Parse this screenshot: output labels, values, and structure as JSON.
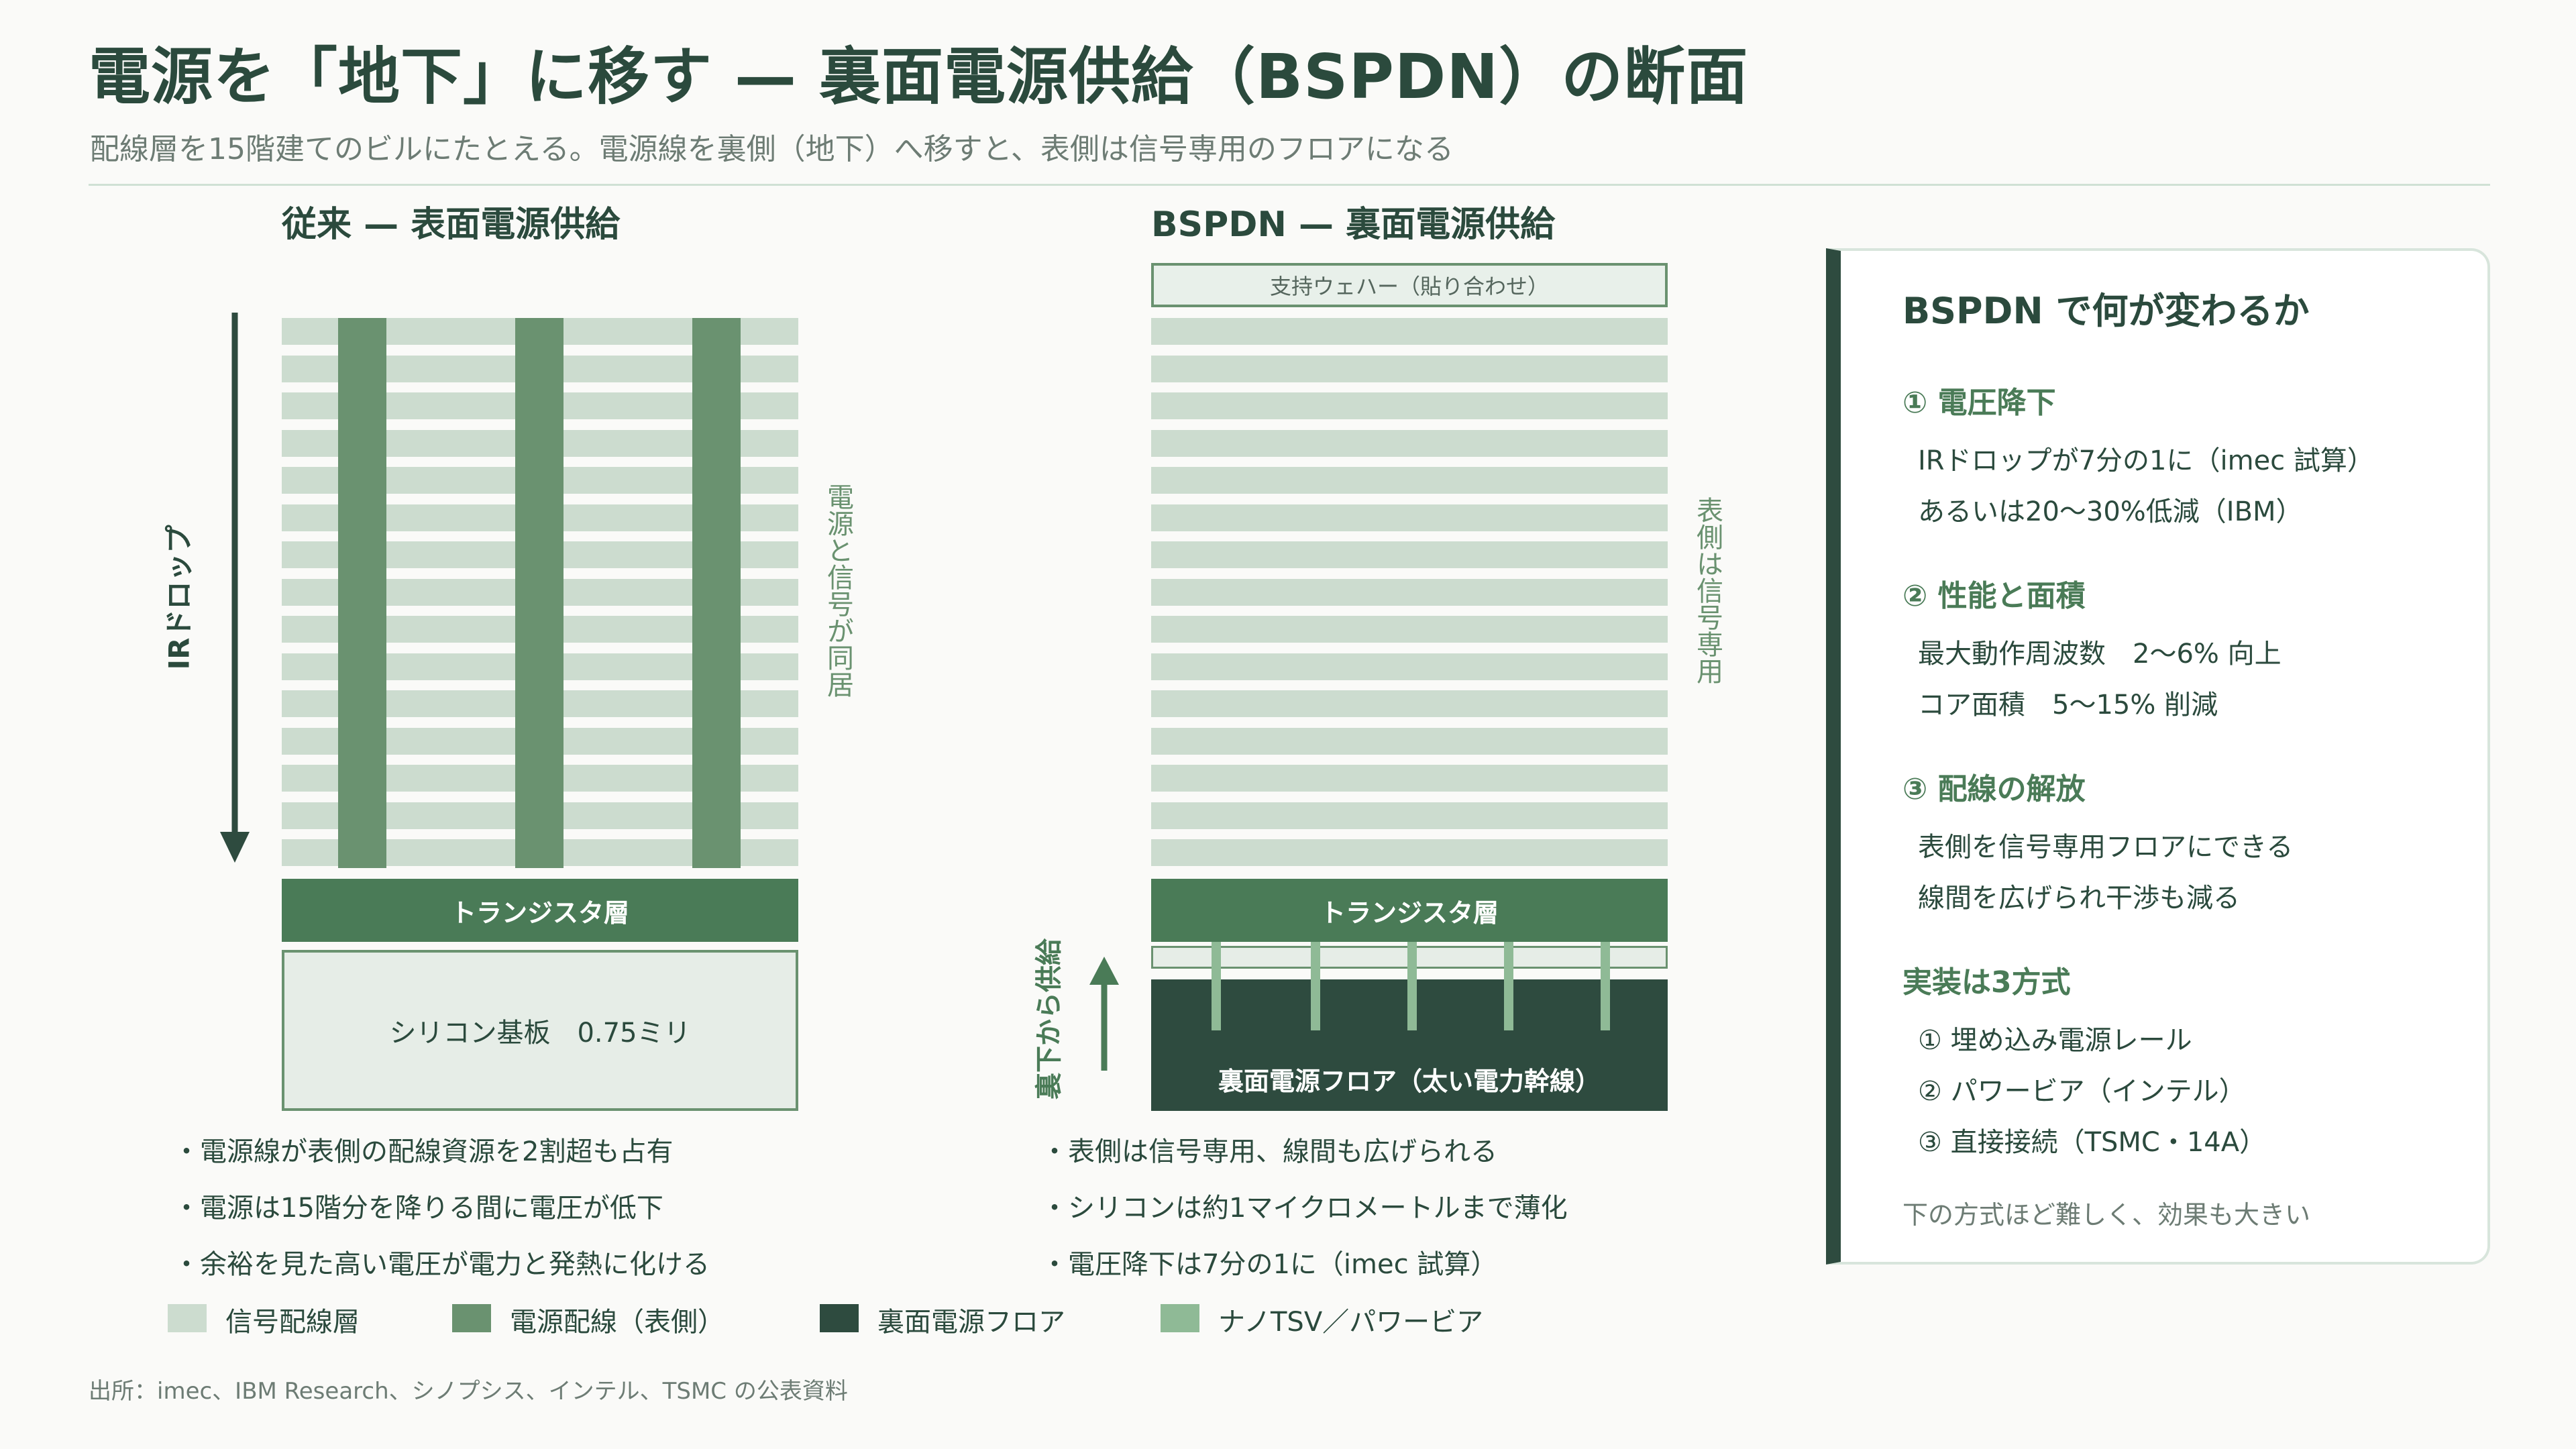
{
  "title": "電源を「地下」に移す — 裏面電源供給（BSPDN）の断面",
  "subtitle": "配線層を15階建てのビルにたとえる。電源線を裏側（地下）へ移すと、表側は信号専用のフロアになる",
  "left": {
    "heading": "従来 — 表面電源供給",
    "ir_drop_label": "IRドロップ",
    "side_label": "電源と信号が同居",
    "transistor_label": "トランジスタ層",
    "silicon_label": "シリコン基板　0.75ミリ",
    "bullets": [
      "・電源線が表側の配線資源を2割超も占有",
      "・電源は15階分を降りる間に電圧が低下",
      "・余裕を見た高い電圧が電力と発熱に化ける"
    ]
  },
  "right": {
    "heading": "BSPDN — 裏面電源供給",
    "support_label": "支持ウェハー（貼り合わせ）",
    "side_label": "表側は信号専用",
    "transistor_label": "トランジスタ層",
    "backside_label": "裏面電源フロア（太い電力幹線）",
    "supply_label": "裏下から供給",
    "bullets": [
      "・表側は信号専用、線間も広げられる",
      "・シリコンは約1マイクロメートルまで薄化",
      "・電圧降下は7分の1に（imec 試算）"
    ]
  },
  "legend": [
    {
      "label": "信号配線層",
      "color": "#ccdccf"
    },
    {
      "label": "電源配線（表側）",
      "color": "#6a9270"
    },
    {
      "label": "裏面電源フロア",
      "color": "#2e4b3f"
    },
    {
      "label": "ナノTSV／パワービア",
      "color": "#8fba96"
    }
  ],
  "source": "出所：imec、IBM Research、シノプシス、インテル、TSMC の公表資料",
  "panel": {
    "title": "BSPDN で何が変わるか",
    "sections": [
      {
        "head": "① 電圧降下",
        "lines": [
          "IRドロップが7分の1に（imec 試算）",
          "あるいは20〜30%低減（IBM）"
        ]
      },
      {
        "head": "② 性能と面積",
        "lines": [
          "最大動作周波数　2〜6% 向上",
          "コア面積　5〜15% 削減"
        ]
      },
      {
        "head": "③ 配線の解放",
        "lines": [
          "表側を信号専用フロアにできる",
          "線間を広げられ干渉も減る"
        ]
      },
      {
        "head": "実装は3方式",
        "lines": [
          "① 埋め込み電源レール",
          "② パワービア（インテル）",
          "③ 直接接続（TSMC・14A）"
        ]
      }
    ],
    "note": "下の方式ほど難しく、効果も大きい"
  }
}
